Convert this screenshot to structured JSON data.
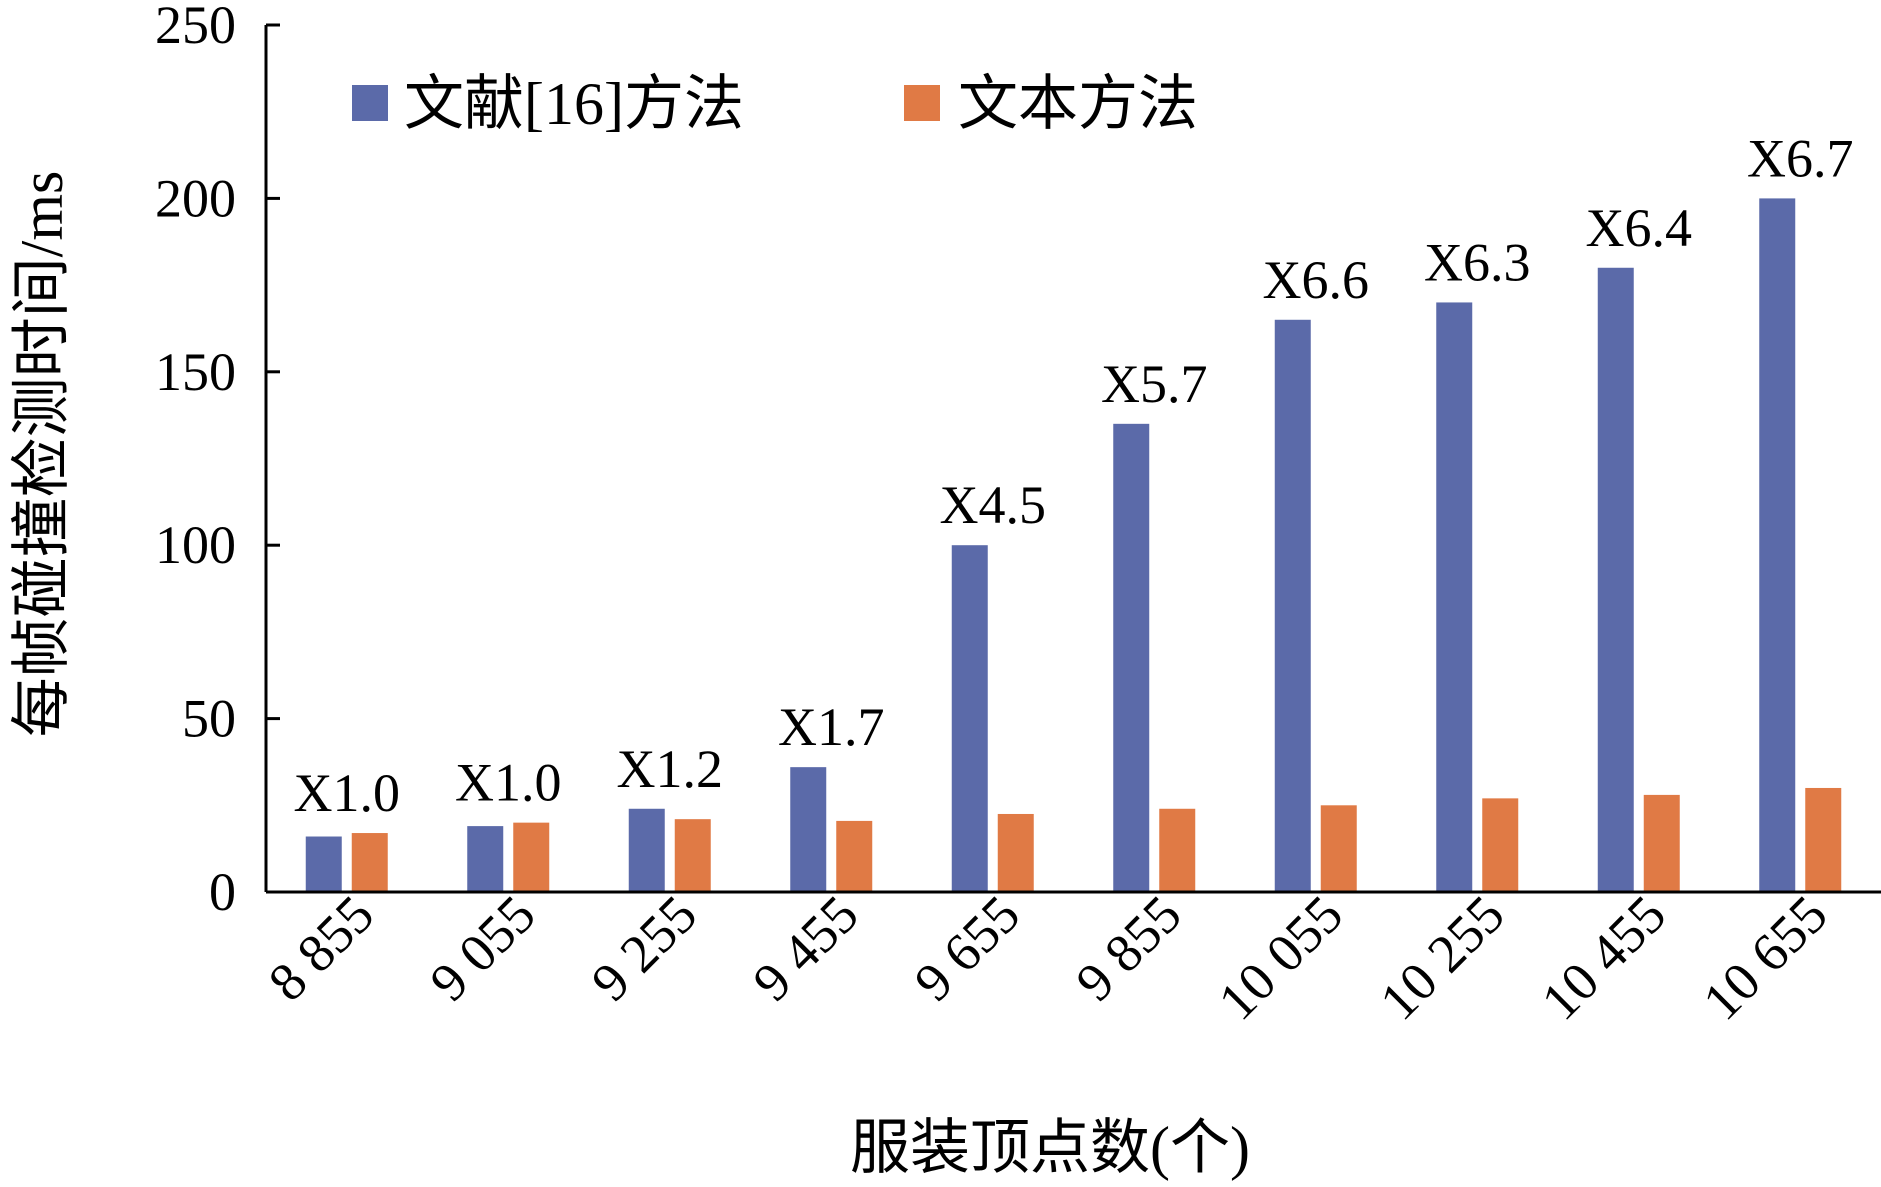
{
  "chart_data": {
    "type": "bar",
    "title": "",
    "xlabel": "服装顶点数(个)",
    "ylabel": "每帧碰撞检测时间/ms",
    "ylim": [
      0,
      250
    ],
    "yticks": [
      0,
      50,
      100,
      150,
      200,
      250
    ],
    "categories": [
      "8 855",
      "9 055",
      "9 255",
      "9 455",
      "9 655",
      "9 855",
      "10 055",
      "10 255",
      "10 455",
      "10 655"
    ],
    "series": [
      {
        "name": "文献[16]方法",
        "color": "#5b6aa9",
        "values": [
          16,
          19,
          24,
          36,
          100,
          135,
          165,
          170,
          180,
          200
        ]
      },
      {
        "name": "文本方法",
        "color": "#e07a45",
        "values": [
          17,
          20,
          21,
          20.5,
          22.5,
          24,
          25,
          27,
          28,
          30
        ]
      }
    ],
    "annotations": [
      "X1.0",
      "X1.0",
      "X1.2",
      "X1.7",
      "X4.5",
      "X5.7",
      "X6.6",
      "X6.3",
      "X6.4",
      "X6.7"
    ],
    "legend_position": "top-left",
    "grid": false
  }
}
